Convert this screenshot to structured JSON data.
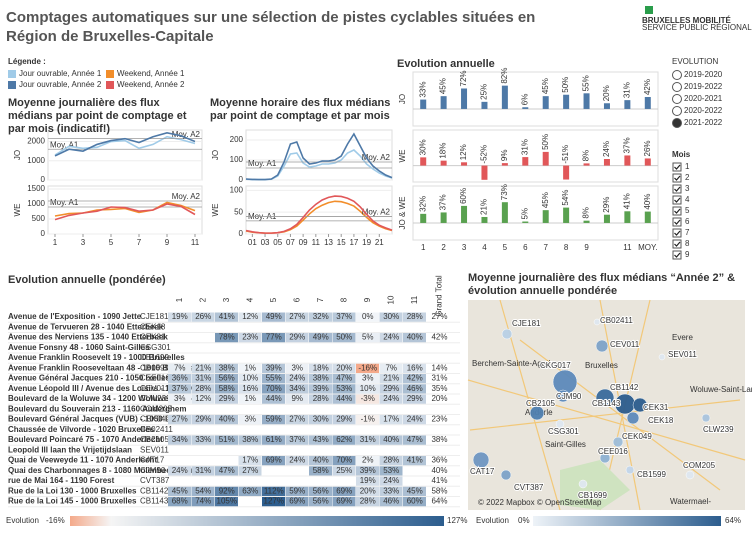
{
  "header": {
    "title": "Comptages automatiques sur une sélection de pistes cyclables situées en Région de Bruxelles-Capitale",
    "logo": "BRUXELLES MOBILITÉ",
    "logo_sub": "SERVICE PUBLIC RÉGIONAL DE BRUXELLES"
  },
  "legend": {
    "title": "Légende :",
    "items": [
      {
        "name": "Jour ouvrable, Année 1",
        "color": "#a0cbe8"
      },
      {
        "name": "Weekend, Année 1",
        "color": "#f28e2b"
      },
      {
        "name": "Jour ouvrable, Année 2",
        "color": "#4e79a7"
      },
      {
        "name": "Weekend, Année 2",
        "color": "#e15759"
      }
    ]
  },
  "daily": {
    "title": "Moyenne journalière des flux médians par point de comptage et par mois (indicatif!)",
    "x": [
      1,
      2,
      3,
      4,
      5,
      6,
      7,
      8,
      9,
      10,
      11
    ],
    "xlim": [
      0.5,
      11.5
    ],
    "xticks": [
      1,
      3,
      5,
      7,
      9,
      11
    ],
    "panels": [
      {
        "label": "JO",
        "ylim": [
          0,
          2600
        ],
        "yticks": [
          0,
          1000,
          2000
        ],
        "series": [
          {
            "color": "#a0cbe8",
            "values": [
              1300,
              1750,
              1650,
              1700,
              2000,
              2050,
              1650,
              1850,
              2250,
              2100,
              1900
            ],
            "mean_label": "Moy. A1",
            "mean": 1600
          },
          {
            "color": "#4e79a7",
            "values": [
              1250,
              1600,
              1500,
              1850,
              2050,
              2150,
              1950,
              2250,
              2450,
              2300,
              2000
            ],
            "mean_label": "Moy. A2",
            "mean": 2150
          }
        ]
      },
      {
        "label": "WE",
        "ylim": [
          0,
          1600
        ],
        "yticks": [
          0,
          500,
          1000,
          1500
        ],
        "series": [
          {
            "color": "#f28e2b",
            "values": [
              600,
              680,
              700,
              800,
              820,
              850,
              720,
              800,
              1050,
              950,
              780
            ],
            "mean_label": "Moy. A1",
            "mean": 900
          },
          {
            "color": "#e15759",
            "values": [
              480,
              620,
              700,
              760,
              900,
              880,
              760,
              800,
              1000,
              920,
              650
            ],
            "mean_label": "Moy. A2",
            "mean": 1100
          }
        ]
      }
    ]
  },
  "hourly": {
    "title": "Moyenne horaire des flux médians par point de comptage et par mois",
    "x": [
      0,
      1,
      2,
      3,
      4,
      5,
      6,
      7,
      8,
      9,
      10,
      11,
      12,
      13,
      14,
      15,
      16,
      17,
      18,
      19,
      20,
      21,
      22,
      23
    ],
    "xlim": [
      0,
      23
    ],
    "xticks": [
      {
        "value": 1,
        "label": "01"
      },
      {
        "value": 3,
        "label": "03"
      },
      {
        "value": 5,
        "label": "05"
      },
      {
        "value": 7,
        "label": "07"
      },
      {
        "value": 9,
        "label": "09"
      },
      11,
      13,
      15,
      17,
      19,
      21
    ],
    "panels": [
      {
        "label": "JO",
        "ylim": [
          0,
          250
        ],
        "yticks": [
          0,
          100,
          200
        ],
        "series": [
          {
            "color": "#a0cbe8",
            "values": [
              4,
              2,
              2,
              2,
              4,
              20,
              70,
              130,
              135,
              85,
              65,
              70,
              80,
              80,
              85,
              100,
              135,
              150,
              120,
              80,
              55,
              35,
              20,
              10
            ],
            "mean_label": "Moy. A1",
            "mean": 60
          },
          {
            "color": "#4e79a7",
            "values": [
              5,
              3,
              2,
              2,
              5,
              25,
              90,
              180,
              190,
              110,
              80,
              85,
              95,
              95,
              100,
              120,
              180,
              230,
              170,
              110,
              70,
              45,
              25,
              12
            ],
            "mean_label": "Moy. A2",
            "mean": 90
          }
        ]
      },
      {
        "label": "WE",
        "ylim": [
          0,
          110
        ],
        "yticks": [
          0,
          50,
          100
        ],
        "series": [
          {
            "color": "#f28e2b",
            "values": [
              7,
              4,
              3,
              2,
              2,
              3,
              5,
              10,
              18,
              32,
              46,
              58,
              66,
              72,
              75,
              74,
              70,
              64,
              52,
              38,
              26,
              18,
              12,
              8
            ],
            "mean_label": "Moy. A1",
            "mean": 30
          },
          {
            "color": "#e15759",
            "values": [
              8,
              5,
              3,
              2,
              2,
              3,
              6,
              12,
              22,
              38,
              55,
              68,
              78,
              84,
              87,
              86,
              82,
              75,
              62,
              45,
              30,
              20,
              14,
              9
            ],
            "mean_label": "Moy. A2",
            "mean": 40
          }
        ]
      }
    ]
  },
  "evolution": {
    "title": "Evolution annuelle",
    "categories": [
      "1",
      "2",
      "3",
      "4",
      "5",
      "6",
      "7",
      "8",
      "9",
      null,
      "11",
      "MOY."
    ],
    "ylim": [
      -60,
      130
    ],
    "rows": [
      {
        "label": "JO",
        "color": "#4e79a7",
        "values": [
          33,
          45,
          72,
          25,
          82,
          6,
          45,
          50,
          55,
          20,
          31,
          42
        ],
        "value_labels": [
          "33%",
          "45%",
          "72%",
          "25%",
          "82%",
          "6%",
          "45%",
          "50%",
          "55%",
          "20%",
          "31%",
          "42%"
        ]
      },
      {
        "label": "WE",
        "color": "#e15759",
        "values": [
          30,
          18,
          12,
          -52,
          9,
          31,
          50,
          -51,
          8,
          24,
          37,
          26
        ],
        "value_labels": [
          "30%",
          "18%",
          "12%",
          "-52%",
          "9%",
          "31%",
          "50%",
          "-51%",
          "8%",
          "24%",
          "37%",
          "26%"
        ]
      },
      {
        "label": "JO & WE",
        "color": "#59a14f",
        "values": [
          32,
          37,
          60,
          21,
          73,
          5,
          45,
          54,
          8,
          29,
          41,
          40
        ],
        "value_labels": [
          "32%",
          "37%",
          "60%",
          "21%",
          "73%",
          "5%",
          "45%",
          "54%",
          "8%",
          "29%",
          "41%",
          "40%"
        ]
      }
    ]
  },
  "filters": {
    "evolution": {
      "title": "EVOLUTION",
      "options": [
        "2019-2020",
        "2019-2022",
        "2020-2021",
        "2020-2022",
        "2021-2022"
      ],
      "selected": 4
    },
    "months": {
      "title": "Mois",
      "options": [
        "1",
        "2",
        "3",
        "4",
        "5",
        "6",
        "7",
        "8",
        "9"
      ]
    }
  },
  "table": {
    "title": "Evolution annuelle (pondérée)",
    "columns": [
      "1",
      "2",
      "3",
      "4",
      "5",
      "6",
      "7",
      "8",
      "9",
      "10",
      "11"
    ],
    "total_header": "Grand Total",
    "rows": [
      {
        "name": "Avenue de l'Exposition - 1090 Jette",
        "code": "CJE181",
        "cells": [
          "19%",
          "26%",
          "41%",
          "12%",
          "49%",
          "27%",
          "32%",
          "37%",
          "0%",
          "30%",
          "28%"
        ],
        "total": "27%"
      },
      {
        "name": "Avenue de Tervueren 28 - 1040 Etterbeek",
        "code": "CEK18",
        "cells": [
          null,
          null,
          null,
          null,
          null,
          null,
          null,
          null,
          null,
          null,
          null
        ],
        "total": null
      },
      {
        "name": "Avenue des Nerviens 135 - 1040 Etterbeek",
        "code": "CEK31",
        "cells": [
          null,
          null,
          "78%",
          "23%",
          "77%",
          "29%",
          "49%",
          "50%",
          "5%",
          "24%",
          "40%"
        ],
        "total": "42%"
      },
      {
        "name": "Avenue Fonsny 48 - 1060 Saint-Gilles",
        "code": "CSG301",
        "cells": [
          null,
          null,
          null,
          null,
          null,
          null,
          null,
          null,
          null,
          null,
          null
        ],
        "total": null
      },
      {
        "name": "Avenue Franklin Roosevelt 19 - 1000 Bruxelles",
        "code": "CB1699",
        "cells": [
          null,
          null,
          null,
          null,
          null,
          null,
          null,
          null,
          null,
          null,
          null
        ],
        "total": null
      },
      {
        "name": "Avenue Franklin Rooseveltaan 48 - 1000 Bruxelles",
        "code": "CB1599",
        "cells": [
          "7%",
          "21%",
          "38%",
          "1%",
          "39%",
          "3%",
          "18%",
          "20%",
          "-16%",
          "7%",
          "16%"
        ],
        "total": "14%"
      },
      {
        "name": "Avenue Général Jacques 210 - 1050 Ixelles",
        "code": "CEE016",
        "cells": [
          "36%",
          "31%",
          "56%",
          "10%",
          "55%",
          "24%",
          "38%",
          "47%",
          "3%",
          "21%",
          "42%"
        ],
        "total": "31%"
      },
      {
        "name": "Avenue Léopold III / Avenue des Loisirs - 1140 Eve...",
        "code": "CEV011",
        "cells": [
          "37%",
          "28%",
          "58%",
          "16%",
          "70%",
          "34%",
          "39%",
          "53%",
          "10%",
          "29%",
          "46%"
        ],
        "total": "35%"
      },
      {
        "name": "Boulevard de la Woluwe 34 - 1200 Woluwe-Saint-...",
        "code": "CLW239",
        "cells": [
          "3%",
          "12%",
          "29%",
          "1%",
          "44%",
          "9%",
          "28%",
          "44%",
          "-3%",
          "24%",
          "29%"
        ],
        "total": "20%"
      },
      {
        "name": "Boulevard du Souverain 213 - 1160 Auderghem",
        "code": "COM205",
        "cells": [
          null,
          null,
          null,
          null,
          null,
          null,
          null,
          null,
          null,
          null,
          null
        ],
        "total": null
      },
      {
        "name": "Boulevard Général Jacques (VUB) - 1050 Ixelles",
        "code": "CEK049",
        "cells": [
          "27%",
          "29%",
          "40%",
          "3%",
          "59%",
          "27%",
          "30%",
          "29%",
          "-1%",
          "17%",
          "24%"
        ],
        "total": "23%"
      },
      {
        "name": "Chaussée de Vilvorde - 1020 Bruxelles",
        "code": "CB02411",
        "cells": [
          null,
          null,
          null,
          null,
          null,
          null,
          null,
          null,
          null,
          null,
          null
        ],
        "total": null
      },
      {
        "name": "Boulevard Poincaré 75 - 1070 Anderlecht",
        "code": "CB2105",
        "cells": [
          "34%",
          "33%",
          "51%",
          "38%",
          "61%",
          "37%",
          "43%",
          "62%",
          "31%",
          "40%",
          "47%"
        ],
        "total": "38%"
      },
      {
        "name": "Leopold III laan the Vrijetijdslaan",
        "code": "SEV011",
        "cells": [
          null,
          null,
          null,
          null,
          null,
          null,
          null,
          null,
          null,
          null,
          null
        ],
        "total": null
      },
      {
        "name": "Quai de Veeweyde 11 - 1070 Anderlecht",
        "code": "CAT17",
        "cells": [
          null,
          null,
          null,
          "17%",
          "69%",
          "24%",
          "40%",
          "70%",
          "2%",
          "28%",
          "41%"
        ],
        "total": "36%"
      },
      {
        "name": "Quai des Charbonnages 8 - 1080 Molenbeek-Saint-...",
        "code": "CJM90",
        "cells": [
          "24%",
          "31%",
          "47%",
          "27%",
          null,
          null,
          "58%",
          "25%",
          "39%",
          "53%",
          null
        ],
        "total": "40%"
      },
      {
        "name": "rue de Mai 164 - 1190 Forest",
        "code": "CVT387",
        "cells": [
          null,
          null,
          null,
          null,
          null,
          null,
          null,
          null,
          "19%",
          "24%",
          null
        ],
        "total": "41%"
      },
      {
        "name": "Rue de la Loi 130 - 1000 Bruxelles",
        "code": "CB1142",
        "cells": [
          "45%",
          "54%",
          "92%",
          "63%",
          "112%",
          "59%",
          "56%",
          "69%",
          "20%",
          "33%",
          "45%"
        ],
        "total": "58%"
      },
      {
        "name": "Rue de la Loi 145 - 1000 Bruxelles",
        "code": "CB1143",
        "cells": [
          "68%",
          "74%",
          "105%",
          null,
          "127%",
          "69%",
          "56%",
          "69%",
          "28%",
          "46%",
          "60%"
        ],
        "total": "64%"
      }
    ],
    "scale": {
      "label": "Evolution",
      "min_label": "-16%",
      "max_label": "127%"
    }
  },
  "map": {
    "title": "Moyenne journalière des flux médians “Année 2” & évolution annuelle pondérée",
    "points": [
      {
        "label": "CJE181",
        "color": "#b9d0e6"
      },
      {
        "label": "CB02411",
        "color": "#dfe8f1"
      },
      {
        "label": "CEV011",
        "color": "#7ea3c8"
      },
      {
        "label": "SEV011",
        "color": "#dfe8f1"
      },
      {
        "label": "CKG017",
        "color": "#5d8abb"
      },
      {
        "label": "CJM90",
        "color": "#5d8abb"
      },
      {
        "label": "CB1142",
        "color": "#2c5d8e"
      },
      {
        "label": "CB2105",
        "color": "#4f7fb0"
      },
      {
        "label": "CB1143",
        "color": "#3a6b9c"
      },
      {
        "label": "CEK31",
        "color": "#2c5d8e"
      },
      {
        "label": "CEK18",
        "color": "#5d8abb"
      },
      {
        "label": "CSG301",
        "color": "#dfe8f1"
      },
      {
        "label": "CEK049",
        "color": "#9ebdd9"
      },
      {
        "label": "CLW239",
        "color": "#a9c4de"
      },
      {
        "label": "CEE016",
        "color": "#8fb2d3"
      },
      {
        "label": "CB1599",
        "color": "#c3d6ea"
      },
      {
        "label": "COM205",
        "color": "#dfe8f1"
      },
      {
        "label": "CAT17",
        "color": "#6f97c2"
      },
      {
        "label": "CVT387",
        "color": "#7ea3c8"
      },
      {
        "label": "CB1699",
        "color": "#dfe8f1"
      }
    ],
    "places": [
      "Berchem-Sainte-Agathe",
      "Evere",
      "Woluwe-Saint-Lambert",
      "Saint-Gilles",
      "Bruxelles",
      "Anderle",
      "Watermael-"
    ],
    "credit": "© 2022 Mapbox © OpenStreetMap",
    "scale": {
      "label": "Evolution",
      "min_label": "0%",
      "max_label": "64%"
    }
  }
}
